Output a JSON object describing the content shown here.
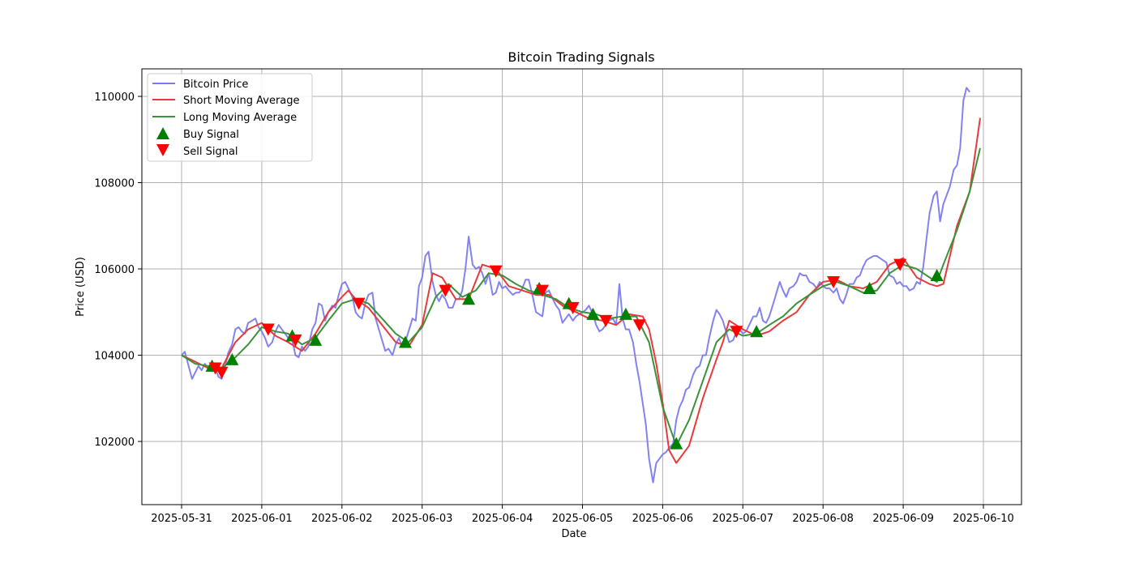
{
  "chart_data": {
    "type": "line",
    "title": "Bitcoin Trading Signals",
    "xlabel": "Date",
    "ylabel": "Price (USD)",
    "x_ticks": [
      "2025-05-31",
      "2025-06-01",
      "2025-06-02",
      "2025-06-03",
      "2025-06-04",
      "2025-06-05",
      "2025-06-06",
      "2025-06-07",
      "2025-06-08",
      "2025-06-09",
      "2025-06-10"
    ],
    "y_ticks": [
      102000,
      104000,
      106000,
      108000,
      110000
    ],
    "xlim_days": [
      -0.48,
      10.48
    ],
    "ylim": [
      100500,
      110650
    ],
    "grid": true,
    "legend_position": "upper left",
    "legend": [
      {
        "label": "Bitcoin Price",
        "kind": "line",
        "color": "#7b7bf0"
      },
      {
        "label": "Short Moving Average",
        "kind": "line",
        "color": "#e8393b"
      },
      {
        "label": "Long Moving Average",
        "kind": "line",
        "color": "#3a923a"
      },
      {
        "label": "Buy Signal",
        "kind": "marker-up",
        "color": "#008000"
      },
      {
        "label": "Sell Signal",
        "kind": "marker-down",
        "color": "#ff0000"
      }
    ],
    "series": [
      {
        "name": "Bitcoin Price",
        "color": "#7b7bf0",
        "x_days": [
          0,
          0.04,
          0.08,
          0.13,
          0.17,
          0.21,
          0.25,
          0.29,
          0.33,
          0.38,
          0.42,
          0.46,
          0.5,
          0.54,
          0.58,
          0.63,
          0.67,
          0.71,
          0.75,
          0.79,
          0.83,
          0.88,
          0.92,
          0.96,
          1.0,
          1.04,
          1.08,
          1.13,
          1.17,
          1.21,
          1.25,
          1.29,
          1.33,
          1.38,
          1.42,
          1.46,
          1.5,
          1.54,
          1.58,
          1.63,
          1.67,
          1.71,
          1.75,
          1.79,
          1.83,
          1.88,
          1.92,
          1.96,
          2.0,
          2.04,
          2.08,
          2.13,
          2.17,
          2.21,
          2.25,
          2.29,
          2.33,
          2.38,
          2.42,
          2.46,
          2.5,
          2.54,
          2.58,
          2.63,
          2.67,
          2.71,
          2.75,
          2.79,
          2.83,
          2.88,
          2.92,
          2.96,
          3.0,
          3.04,
          3.08,
          3.13,
          3.17,
          3.21,
          3.25,
          3.29,
          3.33,
          3.38,
          3.42,
          3.46,
          3.5,
          3.54,
          3.58,
          3.63,
          3.67,
          3.71,
          3.75,
          3.79,
          3.83,
          3.88,
          3.92,
          3.96,
          4.0,
          4.04,
          4.08,
          4.13,
          4.17,
          4.21,
          4.25,
          4.29,
          4.33,
          4.38,
          4.42,
          4.46,
          4.5,
          4.54,
          4.58,
          4.63,
          4.67,
          4.71,
          4.75,
          4.79,
          4.83,
          4.88,
          4.92,
          4.96,
          5.0,
          5.04,
          5.08,
          5.13,
          5.17,
          5.21,
          5.25,
          5.29,
          5.33,
          5.38,
          5.42,
          5.46,
          5.5,
          5.54,
          5.58,
          5.63,
          5.67,
          5.71,
          5.75,
          5.79,
          5.83,
          5.88,
          5.92,
          5.96,
          6.0,
          6.04,
          6.08,
          6.13,
          6.17,
          6.21,
          6.25,
          6.29,
          6.33,
          6.38,
          6.42,
          6.46,
          6.5,
          6.54,
          6.58,
          6.63,
          6.67,
          6.71,
          6.75,
          6.79,
          6.83,
          6.88,
          6.92,
          6.96,
          7.0,
          7.04,
          7.08,
          7.13,
          7.17,
          7.21,
          7.25,
          7.29,
          7.33,
          7.38,
          7.42,
          7.46,
          7.5,
          7.54,
          7.58,
          7.63,
          7.67,
          7.71,
          7.75,
          7.79,
          7.83,
          7.88,
          7.92,
          7.96,
          8.0,
          8.04,
          8.08,
          8.13,
          8.17,
          8.21,
          8.25,
          8.29,
          8.33,
          8.38,
          8.42,
          8.46,
          8.5,
          8.54,
          8.58,
          8.63,
          8.67,
          8.71,
          8.75,
          8.79,
          8.83,
          8.88,
          8.92,
          8.96,
          9.0,
          9.04,
          9.08,
          9.13,
          9.17,
          9.21,
          9.25,
          9.29,
          9.33,
          9.38,
          9.42,
          9.46,
          9.5,
          9.54,
          9.58,
          9.63,
          9.67,
          9.71,
          9.75,
          9.79,
          9.83,
          9.88,
          9.92,
          9.96
        ],
        "values": [
          104000,
          104080,
          103800,
          103450,
          103600,
          103750,
          103650,
          103800,
          103700,
          103850,
          103700,
          103500,
          103450,
          103700,
          104050,
          104250,
          104600,
          104650,
          104550,
          104500,
          104750,
          104800,
          104850,
          104650,
          104550,
          104400,
          104200,
          104300,
          104550,
          104700,
          104600,
          104500,
          104400,
          104350,
          104000,
          103950,
          104200,
          104100,
          104200,
          104600,
          104750,
          105200,
          105150,
          104800,
          105000,
          105150,
          105100,
          105400,
          105650,
          105700,
          105550,
          105350,
          105000,
          104900,
          104850,
          105200,
          105400,
          105450,
          104850,
          104600,
          104350,
          104100,
          104150,
          104000,
          104250,
          104400,
          104200,
          104300,
          104550,
          104850,
          104800,
          105600,
          105800,
          106300,
          106400,
          105700,
          105400,
          105250,
          105400,
          105300,
          105100,
          105100,
          105300,
          105300,
          105500,
          106000,
          106750,
          106100,
          106000,
          106050,
          105900,
          105650,
          105900,
          105400,
          105450,
          105700,
          105550,
          105600,
          105500,
          105400,
          105450,
          105450,
          105550,
          105750,
          105750,
          105350,
          105000,
          104950,
          104900,
          105450,
          105500,
          105300,
          105150,
          105050,
          104750,
          104850,
          104950,
          104800,
          104900,
          104950,
          105000,
          105050,
          105150,
          104950,
          104700,
          104550,
          104600,
          104700,
          104800,
          104850,
          104700,
          105650,
          104850,
          104600,
          104600,
          104300,
          103800,
          103400,
          102900,
          102400,
          101600,
          101050,
          101500,
          101600,
          101700,
          101750,
          101850,
          101950,
          102500,
          102800,
          102950,
          103200,
          103250,
          103550,
          103700,
          103750,
          104000,
          104000,
          104400,
          104800,
          105050,
          104950,
          104800,
          104550,
          104300,
          104350,
          104550,
          104600,
          104500,
          104550,
          104700,
          104900,
          104900,
          105100,
          104800,
          104750,
          104900,
          105200,
          105450,
          105700,
          105500,
          105350,
          105550,
          105600,
          105700,
          105900,
          105850,
          105850,
          105700,
          105650,
          105550,
          105700,
          105600,
          105550,
          105550,
          105450,
          105550,
          105300,
          105200,
          105400,
          105650,
          105650,
          105800,
          105850,
          106050,
          106200,
          106250,
          106300,
          106300,
          106250,
          106200,
          106150,
          105850,
          105800,
          105650,
          105700,
          105600,
          105600,
          105500,
          105550,
          105700,
          105650,
          106050,
          106700,
          107300,
          107700,
          107800,
          107100,
          107500,
          107700,
          107900,
          108300,
          108400,
          108800,
          109900,
          110200,
          110100
        ]
      },
      {
        "name": "Short Moving Average",
        "color": "#e8393b",
        "x_days": [
          0,
          0.17,
          0.33,
          0.5,
          0.67,
          0.83,
          1.0,
          1.17,
          1.33,
          1.5,
          1.67,
          1.83,
          2.0,
          2.08,
          2.17,
          2.33,
          2.5,
          2.67,
          2.83,
          3.0,
          3.13,
          3.25,
          3.42,
          3.58,
          3.75,
          3.92,
          4.08,
          4.25,
          4.42,
          4.58,
          4.75,
          4.92,
          5.08,
          5.25,
          5.42,
          5.58,
          5.75,
          5.83,
          5.92,
          6.0,
          6.08,
          6.17,
          6.33,
          6.5,
          6.67,
          6.75,
          6.83,
          7.0,
          7.17,
          7.33,
          7.5,
          7.67,
          7.83,
          8.0,
          8.17,
          8.33,
          8.5,
          8.67,
          8.83,
          9.0,
          9.17,
          9.33,
          9.42,
          9.5,
          9.67,
          9.83,
          9.96
        ],
        "values": [
          104000,
          103850,
          103700,
          103700,
          104300,
          104600,
          104750,
          104450,
          104300,
          104100,
          104500,
          105000,
          105350,
          105500,
          105300,
          105100,
          104700,
          104300,
          104200,
          104700,
          105900,
          105800,
          105300,
          105300,
          106100,
          106000,
          105600,
          105500,
          105400,
          105400,
          105150,
          105000,
          104850,
          104800,
          104700,
          104950,
          104900,
          104600,
          103800,
          102900,
          101800,
          101500,
          101900,
          103000,
          103900,
          104300,
          104800,
          104600,
          104450,
          104550,
          104800,
          105000,
          105400,
          105700,
          105750,
          105600,
          105550,
          105700,
          106100,
          106250,
          105800,
          105650,
          105600,
          105650,
          107000,
          107800,
          109500
        ]
      },
      {
        "name": "Long Moving Average",
        "color": "#3a923a",
        "x_days": [
          0,
          0.17,
          0.33,
          0.5,
          0.67,
          0.83,
          1.0,
          1.17,
          1.33,
          1.5,
          1.67,
          1.83,
          2.0,
          2.17,
          2.33,
          2.5,
          2.67,
          2.83,
          3.0,
          3.17,
          3.33,
          3.5,
          3.67,
          3.83,
          4.0,
          4.17,
          4.33,
          4.5,
          4.67,
          4.83,
          5.0,
          5.17,
          5.33,
          5.5,
          5.67,
          5.83,
          6.0,
          6.17,
          6.33,
          6.5,
          6.67,
          6.83,
          7.0,
          7.17,
          7.33,
          7.5,
          7.67,
          7.83,
          8.0,
          8.17,
          8.33,
          8.5,
          8.67,
          8.83,
          9.0,
          9.17,
          9.33,
          9.42,
          9.5,
          9.67,
          9.83,
          9.96
        ],
        "values": [
          104000,
          103800,
          103750,
          103700,
          103950,
          104250,
          104650,
          104550,
          104500,
          104250,
          104400,
          104800,
          105200,
          105300,
          105200,
          104850,
          104500,
          104300,
          104650,
          105350,
          105650,
          105350,
          105500,
          105900,
          105850,
          105650,
          105500,
          105400,
          105300,
          105100,
          105000,
          104950,
          104850,
          104900,
          104900,
          104300,
          102800,
          101900,
          102500,
          103400,
          104300,
          104600,
          104450,
          104500,
          104700,
          104900,
          105200,
          105400,
          105600,
          105700,
          105600,
          105450,
          105500,
          105900,
          106100,
          106000,
          105800,
          105700,
          106100,
          106900,
          107800,
          108800
        ]
      }
    ],
    "buy_signals": [
      {
        "x_day": 0.38,
        "price": 103750
      },
      {
        "x_day": 0.63,
        "price": 103900
      },
      {
        "x_day": 1.38,
        "price": 104450
      },
      {
        "x_day": 1.67,
        "price": 104350
      },
      {
        "x_day": 2.79,
        "price": 104300
      },
      {
        "x_day": 3.58,
        "price": 105300
      },
      {
        "x_day": 4.46,
        "price": 105550
      },
      {
        "x_day": 4.83,
        "price": 105200
      },
      {
        "x_day": 5.13,
        "price": 104950
      },
      {
        "x_day": 5.54,
        "price": 104950
      },
      {
        "x_day": 6.17,
        "price": 101950
      },
      {
        "x_day": 7.17,
        "price": 104550
      },
      {
        "x_day": 8.58,
        "price": 105550
      },
      {
        "x_day": 9.42,
        "price": 105850
      }
    ],
    "sell_signals": [
      {
        "x_day": 0.42,
        "price": 103700
      },
      {
        "x_day": 0.5,
        "price": 103600
      },
      {
        "x_day": 1.08,
        "price": 104600
      },
      {
        "x_day": 1.42,
        "price": 104350
      },
      {
        "x_day": 2.21,
        "price": 105200
      },
      {
        "x_day": 3.29,
        "price": 105500
      },
      {
        "x_day": 3.92,
        "price": 105950
      },
      {
        "x_day": 4.5,
        "price": 105500
      },
      {
        "x_day": 4.88,
        "price": 105100
      },
      {
        "x_day": 5.29,
        "price": 104800
      },
      {
        "x_day": 5.71,
        "price": 104700
      },
      {
        "x_day": 6.92,
        "price": 104550
      },
      {
        "x_day": 8.13,
        "price": 105700
      },
      {
        "x_day": 8.96,
        "price": 106100
      }
    ]
  }
}
